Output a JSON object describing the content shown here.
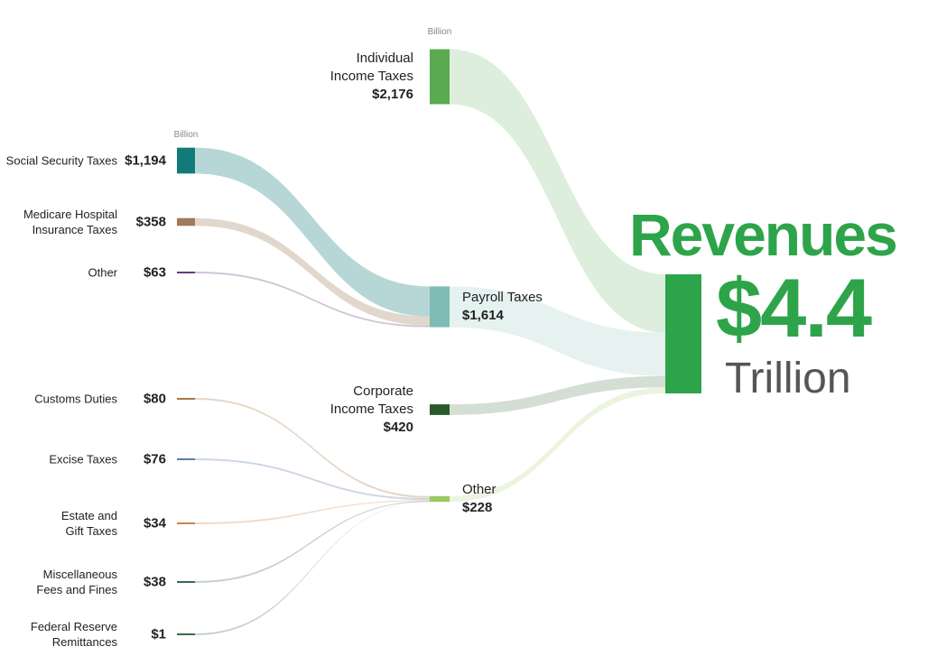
{
  "chart_data": {
    "type": "sankey",
    "unit": "Billion",
    "total": {
      "name": "Revenues",
      "value": 4.4,
      "value_label": "$4.4",
      "unit": "Trillion",
      "color": "#2ea44a"
    },
    "groups": [
      {
        "name": "Individual Income Taxes",
        "value": 2176,
        "value_label": "$2,176",
        "color": "#5aaa50",
        "children": []
      },
      {
        "name": "Payroll Taxes",
        "value": 1614,
        "value_label": "$1,614",
        "color": "#7fbcb5",
        "children": [
          {
            "name": "Social Security Taxes",
            "value": 1194,
            "value_label": "$1,194",
            "color": "#127a7a"
          },
          {
            "name": "Medicare Hospital Insurance Taxes",
            "value": 358,
            "value_label": "$358",
            "color": "#a07a5a"
          },
          {
            "name": "Other",
            "value": 63,
            "value_label": "$63",
            "color": "#6a3a7a"
          }
        ]
      },
      {
        "name": "Corporate Income Taxes",
        "value": 420,
        "value_label": "$420",
        "color": "#2a5a2a",
        "children": []
      },
      {
        "name": "Other",
        "value": 228,
        "value_label": "$228",
        "color": "#9cc860",
        "children": [
          {
            "name": "Customs Duties",
            "value": 80,
            "value_label": "$80",
            "color": "#a87a4a"
          },
          {
            "name": "Excise Taxes",
            "value": 76,
            "value_label": "$76",
            "color": "#5a7ea8"
          },
          {
            "name": "Estate and Gift Taxes",
            "value": 34,
            "value_label": "$34",
            "color": "#d0844a"
          },
          {
            "name": "Miscellaneous Fees and Fines",
            "value": 38,
            "value_label": "$38",
            "color": "#3a6a4a"
          },
          {
            "name": "Federal Reserve Remittances",
            "value": 1,
            "value_label": "$1",
            "color": "#3a6a4a"
          }
        ]
      }
    ]
  }
}
